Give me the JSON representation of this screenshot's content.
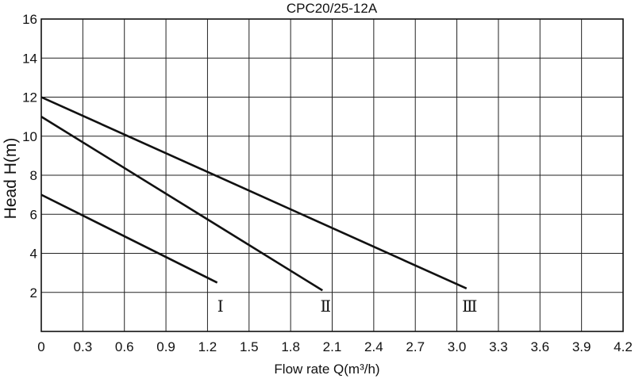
{
  "chart_data": {
    "type": "line",
    "title": "CPC20/25-12A",
    "xlabel": "Flow rate Q(m³/h)",
    "ylabel": "Head H(m)",
    "xlim": [
      0,
      4.2
    ],
    "ylim": [
      0,
      16
    ],
    "grid": true,
    "x_ticks": [
      "0",
      "0.3",
      "0.6",
      "0.9",
      "1.2",
      "1.5",
      "1.8",
      "2.1",
      "2.4",
      "2.7",
      "3.0",
      "3.3",
      "3.6",
      "3.9",
      "4.2"
    ],
    "y_ticks": [
      "2",
      "4",
      "6",
      "8",
      "10",
      "12",
      "14",
      "16"
    ],
    "series": [
      {
        "name": "Ⅰ",
        "x": [
          0,
          1.27
        ],
        "values": [
          7.0,
          2.5
        ]
      },
      {
        "name": "Ⅱ",
        "x": [
          0,
          2.03
        ],
        "values": [
          11.0,
          2.1
        ]
      },
      {
        "name": "Ⅲ",
        "x": [
          0,
          3.07
        ],
        "values": [
          12.0,
          2.2
        ]
      }
    ]
  }
}
